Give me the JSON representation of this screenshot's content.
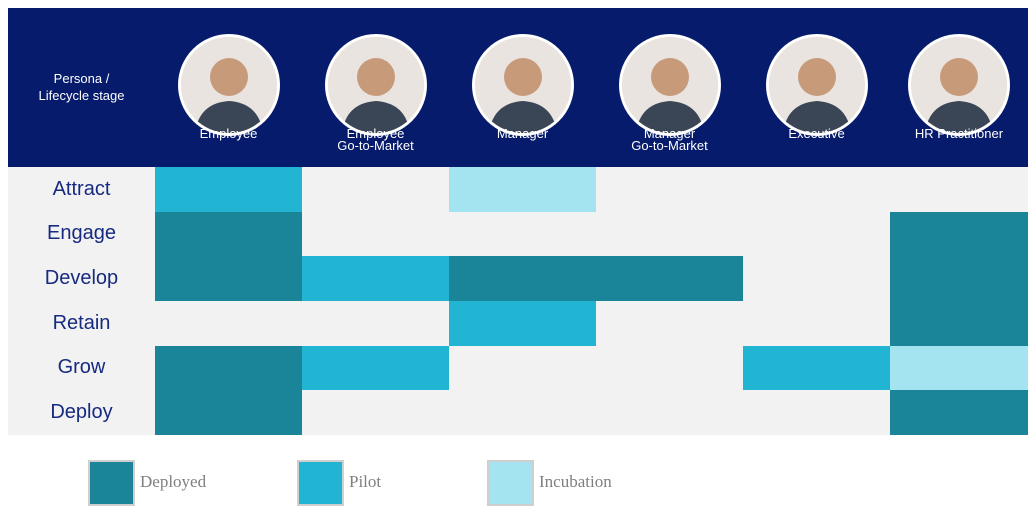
{
  "header": {
    "corner": "Persona /\nLifecycle stage",
    "columns": [
      "Employee",
      "Employee\nGo-to-Market",
      "Manager",
      "Manager\nGo-to-Market",
      "Executive",
      "HR Practitioner"
    ]
  },
  "legend": [
    {
      "label": "Deployed",
      "color": "#1a8499"
    },
    {
      "label": "Pilot",
      "color": "#22b4d3"
    },
    {
      "label": "Incubation",
      "color": "#a4e4f1"
    }
  ],
  "rows": [
    {
      "label": "Attract",
      "cells": [
        "Pilot",
        null,
        "Incubation",
        null,
        null,
        null
      ]
    },
    {
      "label": "Engage",
      "cells": [
        "Deployed",
        null,
        null,
        null,
        null,
        "Deployed"
      ]
    },
    {
      "label": "Develop",
      "cells": [
        "Deployed",
        "Pilot",
        "Deployed",
        "Deployed",
        null,
        "Deployed"
      ]
    },
    {
      "label": "Retain",
      "cells": [
        null,
        null,
        "Pilot",
        null,
        null,
        "Deployed"
      ]
    },
    {
      "label": "Grow",
      "cells": [
        "Deployed",
        "Pilot",
        null,
        null,
        "Pilot",
        "Incubation"
      ]
    },
    {
      "label": "Deploy",
      "cells": [
        "Deployed",
        null,
        null,
        null,
        null,
        "Deployed"
      ]
    }
  ]
}
